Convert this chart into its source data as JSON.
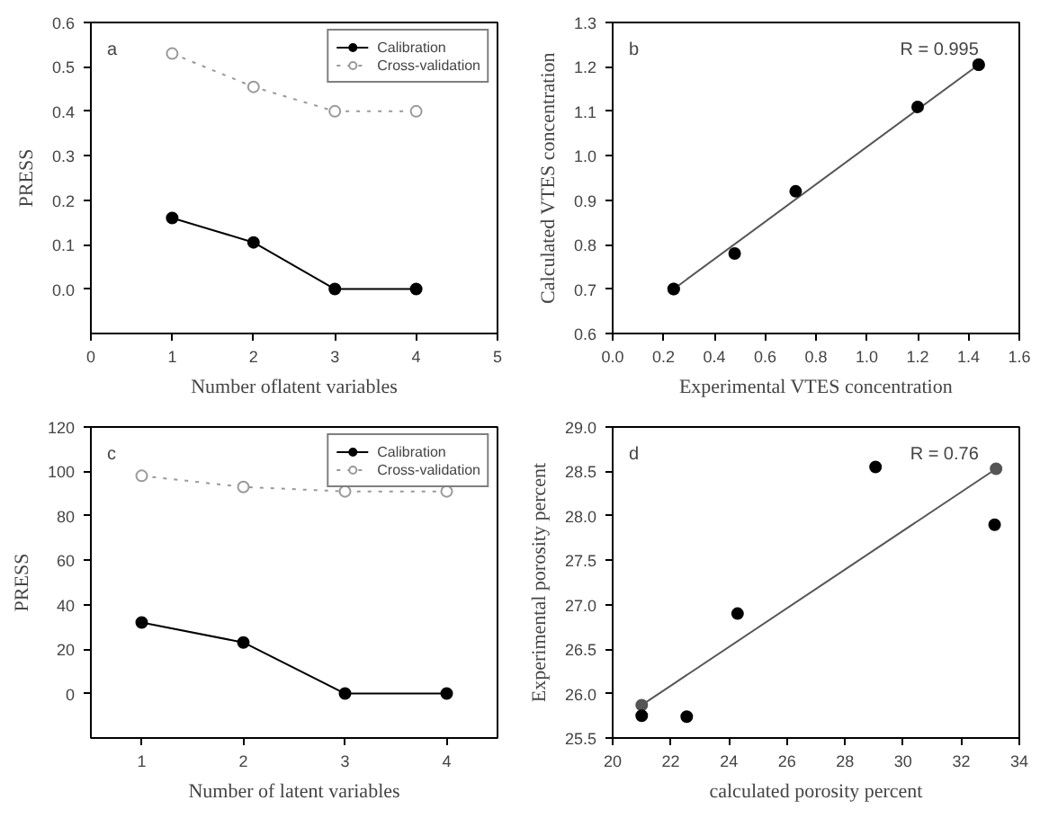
{
  "chart_data": [
    {
      "type": "line",
      "xlabel": "Number oflatent variables",
      "ylabel": "PRESS",
      "x": [
        1,
        2,
        3,
        4
      ],
      "xlim": [
        0,
        5
      ],
      "xticks": [
        0,
        1,
        2,
        3,
        4,
        5
      ],
      "ylim": [
        -0.1,
        0.6
      ],
      "yticks": [
        {
          "value": 0,
          "label": "0.0"
        },
        0.1,
        0.2,
        0.3,
        0.4,
        0.5,
        0.6
      ],
      "annotations": [
        "a"
      ],
      "legend": "top right",
      "grid": false,
      "series": [
        {
          "name": "Calibration",
          "color": "#000000",
          "values": [
            0.16,
            0.105,
            0.0,
            0.0
          ],
          "marker": "circle",
          "line_style": "solid"
        },
        {
          "name": "Cross-validation",
          "color": "#999999",
          "values": [
            0.53,
            0.455,
            0.4,
            0.4
          ],
          "marker": "open_circle",
          "line_style": "dotted"
        }
      ]
    },
    {
      "type": "scatter",
      "xlabel": "Experimental VTES concentration",
      "ylabel": "Calculated VTES concentration",
      "xlim": [
        0,
        1.6
      ],
      "xticks": [
        {
          "value": 0,
          "label": "0.0"
        },
        0.2,
        0.4,
        0.6,
        0.8,
        {
          "value": 1,
          "label": "1.0"
        },
        1.2,
        1.4,
        1.6
      ],
      "ylim": [
        0.6,
        1.3
      ],
      "yticks": [
        0.6,
        0.7,
        0.8,
        0.9,
        {
          "value": 1,
          "label": "1.0"
        },
        1.1,
        1.2,
        1.3
      ],
      "annotations": [
        "b",
        "R = 0.995"
      ],
      "grid": false,
      "marker": "circle",
      "series": [
        {
          "type": "line",
          "color": "#555555",
          "x": [
            0.24,
            1.44
          ],
          "values": [
            0.7,
            1.205
          ]
        },
        {
          "color": "#000000",
          "x": [
            0.24,
            0.48,
            0.72,
            1.2,
            1.44
          ],
          "values": [
            0.7,
            0.78,
            0.92,
            1.11,
            1.205
          ]
        }
      ]
    },
    {
      "type": "line",
      "xlabel": "Number of latent variables",
      "ylabel": "PRESS",
      "x": [
        1,
        2,
        3,
        4
      ],
      "xlim": [
        0.5,
        4.5
      ],
      "xticks": [
        1,
        2,
        3,
        4
      ],
      "ylim": [
        -20,
        120
      ],
      "yticks": [
        0,
        20,
        40,
        60,
        80,
        100,
        120
      ],
      "annotations": [
        "c"
      ],
      "legend": "top right",
      "grid": false,
      "series": [
        {
          "name": "Calibration",
          "color": "#000000",
          "values": [
            32,
            23,
            0,
            0
          ],
          "marker": "circle",
          "line_style": "solid"
        },
        {
          "name": "Cross-validation",
          "color": "#999999",
          "values": [
            98,
            93,
            91,
            91
          ],
          "marker": "open_circle",
          "line_style": "dotted"
        }
      ]
    },
    {
      "type": "scatter",
      "xlabel": "calculated porosity percent",
      "ylabel": "Experimental porosity percent",
      "xlim": [
        20,
        34
      ],
      "xticks": [
        20,
        22,
        24,
        26,
        28,
        30,
        32,
        34
      ],
      "ylim": [
        25.5,
        29
      ],
      "yticks": [
        25.5,
        {
          "value": 26,
          "label": "26.0"
        },
        26.5,
        {
          "value": 27,
          "label": "27.0"
        },
        27.5,
        {
          "value": 28,
          "label": "28.0"
        },
        28.5,
        {
          "value": 29,
          "label": "29.0"
        }
      ],
      "annotations": [
        "d",
        "R = 0.76"
      ],
      "grid": false,
      "marker": "circle",
      "series": [
        {
          "type": "line",
          "color": "#555555",
          "x": [
            21.0,
            33.2
          ],
          "values": [
            25.87,
            28.53
          ]
        },
        {
          "color": "#000000",
          "x": [
            21.0,
            22.55,
            24.3,
            29.05,
            33.15
          ],
          "values": [
            25.75,
            25.74,
            26.9,
            28.55,
            27.9
          ]
        }
      ]
    }
  ]
}
